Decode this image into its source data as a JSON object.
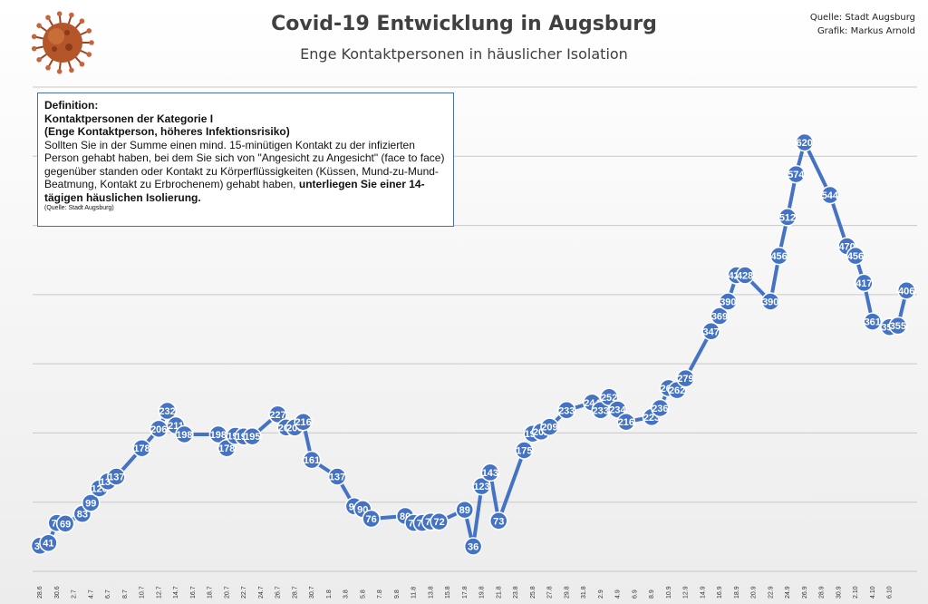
{
  "header": {
    "title": "Covid-19 Entwicklung in Augsburg",
    "subtitle": "Enge Kontaktpersonen in häuslicher Isolation",
    "source_line1": "Quelle: Stadt Augsburg",
    "source_line2": "Grafik: Markus Arnold"
  },
  "definition": {
    "heading": "Definition:",
    "category": "Kontaktpersonen der Kategorie I",
    "category_sub": "(Enge Kontaktperson, höheres Infektionsrisiko)",
    "body": "Sollten Sie in der Summe einen mind. 15-minütigen Kontakt zu der infizierten Person gehabt haben, bei dem Sie sich von \"Angesicht zu Angesicht\" (face to face) gegenüber standen oder Kontakt zu Körperflüssigkeiten (Küssen, Mund-zu-Mund-Beatmung, Kontakt zu Erbrochenem) gehabt haben, ",
    "body_bold": "unterliegen Sie einer 14-tägigen häuslichen Isolierung.",
    "source": "(Quelle: Stadt Augsburg)"
  },
  "colors": {
    "line": "#4472c4",
    "marker": "#4472c4",
    "label": "#ffffff",
    "grid": "#c8c8c8"
  },
  "chart_data": {
    "type": "line",
    "title": "Covid-19 Entwicklung in Augsburg",
    "subtitle": "Enge Kontaktpersonen in häuslicher Isolation",
    "ylim": [
      0,
      700
    ],
    "grid": true,
    "legend": "none",
    "x_ticks": [
      "28.6",
      "30.6",
      "2.7",
      "4.7",
      "6.7",
      "8.7",
      "10.7",
      "12.7",
      "14.7",
      "16.7",
      "18.7",
      "20.7",
      "22.7",
      "24.7",
      "26.7",
      "28.7",
      "30.7",
      "1.8",
      "3.8",
      "5.8",
      "7.8",
      "9.8",
      "11.8",
      "13.8",
      "15.8",
      "17.8",
      "19.8",
      "21.8",
      "23.8",
      "25.8",
      "27.8",
      "29.8",
      "31.8",
      "2.9",
      "4.9",
      "6.9",
      "8.9",
      "10.9",
      "12.9",
      "14.9",
      "16.9",
      "18.9",
      "20.9",
      "22.9",
      "24.9",
      "26.9",
      "28.9",
      "30.9",
      "2.10",
      "4.10",
      "6.10"
    ],
    "points": [
      {
        "x": 0,
        "y": 37,
        "label": "37"
      },
      {
        "x": 1,
        "y": 41,
        "label": "41"
      },
      {
        "x": 2,
        "y": 70,
        "label": "70"
      },
      {
        "x": 3,
        "y": 69,
        "label": "69"
      },
      {
        "x": 5,
        "y": 83,
        "label": "83"
      },
      {
        "x": 6,
        "y": 99,
        "label": "99"
      },
      {
        "x": 7,
        "y": 120,
        "label": "120"
      },
      {
        "x": 8,
        "y": 130,
        "label": "130"
      },
      {
        "x": 9,
        "y": 137,
        "label": "137"
      },
      {
        "x": 12,
        "y": 178,
        "label": "178"
      },
      {
        "x": 14,
        "y": 206,
        "label": "206"
      },
      {
        "x": 15,
        "y": 232,
        "label": "232"
      },
      {
        "x": 16,
        "y": 211,
        "label": "211"
      },
      {
        "x": 17,
        "y": 198,
        "label": "198"
      },
      {
        "x": 21,
        "y": 198,
        "label": "198"
      },
      {
        "x": 22,
        "y": 178,
        "label": "178"
      },
      {
        "x": 23,
        "y": 196,
        "label": "196"
      },
      {
        "x": 24,
        "y": 195,
        "label": "195"
      },
      {
        "x": 25,
        "y": 195,
        "label": "195"
      },
      {
        "x": 28,
        "y": 227,
        "label": "227"
      },
      {
        "x": 29,
        "y": 208,
        "label": "208"
      },
      {
        "x": 30,
        "y": 208,
        "label": "208"
      },
      {
        "x": 31,
        "y": 216,
        "label": "216"
      },
      {
        "x": 32,
        "y": 161,
        "label": "161"
      },
      {
        "x": 35,
        "y": 137,
        "label": "137"
      },
      {
        "x": 37,
        "y": 94,
        "label": "94"
      },
      {
        "x": 38,
        "y": 90,
        "label": "90"
      },
      {
        "x": 39,
        "y": 76,
        "label": "76"
      },
      {
        "x": 43,
        "y": 80,
        "label": "80"
      },
      {
        "x": 44,
        "y": 70,
        "label": "70"
      },
      {
        "x": 45,
        "y": 70,
        "label": "70"
      },
      {
        "x": 46,
        "y": 72,
        "label": "72"
      },
      {
        "x": 47,
        "y": 72,
        "label": "72"
      },
      {
        "x": 50,
        "y": 89,
        "label": "89"
      },
      {
        "x": 51,
        "y": 36,
        "label": "36"
      },
      {
        "x": 52,
        "y": 123,
        "label": "123"
      },
      {
        "x": 53,
        "y": 143,
        "label": "143"
      },
      {
        "x": 54,
        "y": 73,
        "label": "73"
      },
      {
        "x": 57,
        "y": 175,
        "label": "175"
      },
      {
        "x": 58,
        "y": 199,
        "label": "199"
      },
      {
        "x": 59,
        "y": 202,
        "label": "202"
      },
      {
        "x": 60,
        "y": 209,
        "label": "209"
      },
      {
        "x": 62,
        "y": 233,
        "label": "233"
      },
      {
        "x": 65,
        "y": 244,
        "label": "244"
      },
      {
        "x": 66,
        "y": 233,
        "label": "233"
      },
      {
        "x": 67,
        "y": 252,
        "label": "252"
      },
      {
        "x": 68,
        "y": 234,
        "label": "234"
      },
      {
        "x": 69,
        "y": 216,
        "label": "216"
      },
      {
        "x": 72,
        "y": 223,
        "label": "223"
      },
      {
        "x": 73,
        "y": 236,
        "label": "236"
      },
      {
        "x": 74,
        "y": 265,
        "label": "265"
      },
      {
        "x": 75,
        "y": 262,
        "label": "262"
      },
      {
        "x": 76,
        "y": 279,
        "label": "279"
      },
      {
        "x": 79,
        "y": 347,
        "label": "347"
      },
      {
        "x": 80,
        "y": 369,
        "label": "369"
      },
      {
        "x": 81,
        "y": 390,
        "label": "390"
      },
      {
        "x": 82,
        "y": 428,
        "label": "428"
      },
      {
        "x": 83,
        "y": 428,
        "label": "428"
      },
      {
        "x": 86,
        "y": 390,
        "label": "390"
      },
      {
        "x": 87,
        "y": 456,
        "label": "456"
      },
      {
        "x": 88,
        "y": 512,
        "label": "512"
      },
      {
        "x": 89,
        "y": 574,
        "label": "574"
      },
      {
        "x": 90,
        "y": 620,
        "label": "620"
      },
      {
        "x": 93,
        "y": 544,
        "label": "544"
      },
      {
        "x": 95,
        "y": 470,
        "label": "470"
      },
      {
        "x": 96,
        "y": 456,
        "label": "456"
      },
      {
        "x": 97,
        "y": 417,
        "label": "417"
      },
      {
        "x": 98,
        "y": 361,
        "label": "361"
      },
      {
        "x": 100,
        "y": 353,
        "label": "353"
      },
      {
        "x": 101,
        "y": 355,
        "label": "355"
      },
      {
        "x": 102,
        "y": 406,
        "label": "406"
      }
    ]
  }
}
